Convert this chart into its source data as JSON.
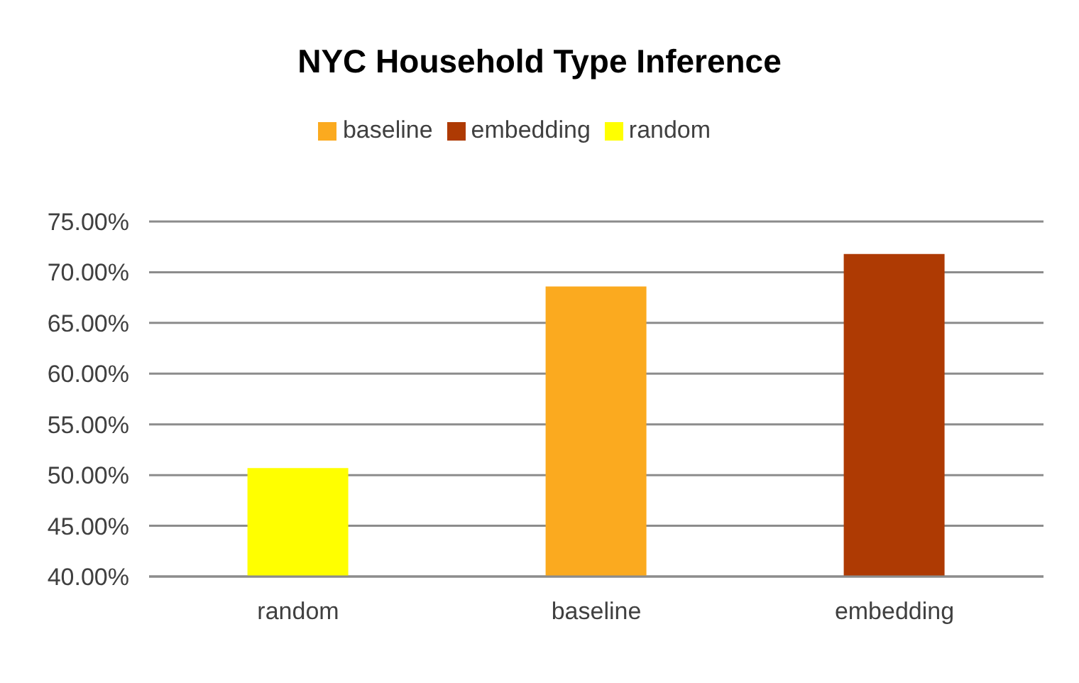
{
  "chart_data": {
    "type": "bar",
    "title": "NYC Household Type Inference",
    "categories": [
      "random",
      "baseline",
      "embedding"
    ],
    "stacked": true,
    "series": [
      {
        "name": "random",
        "color": "#ffff00",
        "values": [
          50.7,
          null,
          null
        ]
      },
      {
        "name": "baseline",
        "color": "#fbaa1f",
        "values": [
          null,
          68.6,
          null
        ]
      },
      {
        "name": "embedding",
        "color": "#ae3a03",
        "values": [
          null,
          null,
          71.8
        ]
      }
    ],
    "ylim": [
      40,
      75
    ],
    "yticks": [
      {
        "value": 40,
        "label": "40.00%"
      },
      {
        "value": 45,
        "label": "45.00%"
      },
      {
        "value": 50,
        "label": "50.00%"
      },
      {
        "value": 55,
        "label": "55.00%"
      },
      {
        "value": 60,
        "label": "60.00%"
      },
      {
        "value": 65,
        "label": "65.00%"
      },
      {
        "value": 70,
        "label": "70.00%"
      },
      {
        "value": 75,
        "label": "75.00%"
      }
    ],
    "grid": "y",
    "legend": "top"
  }
}
